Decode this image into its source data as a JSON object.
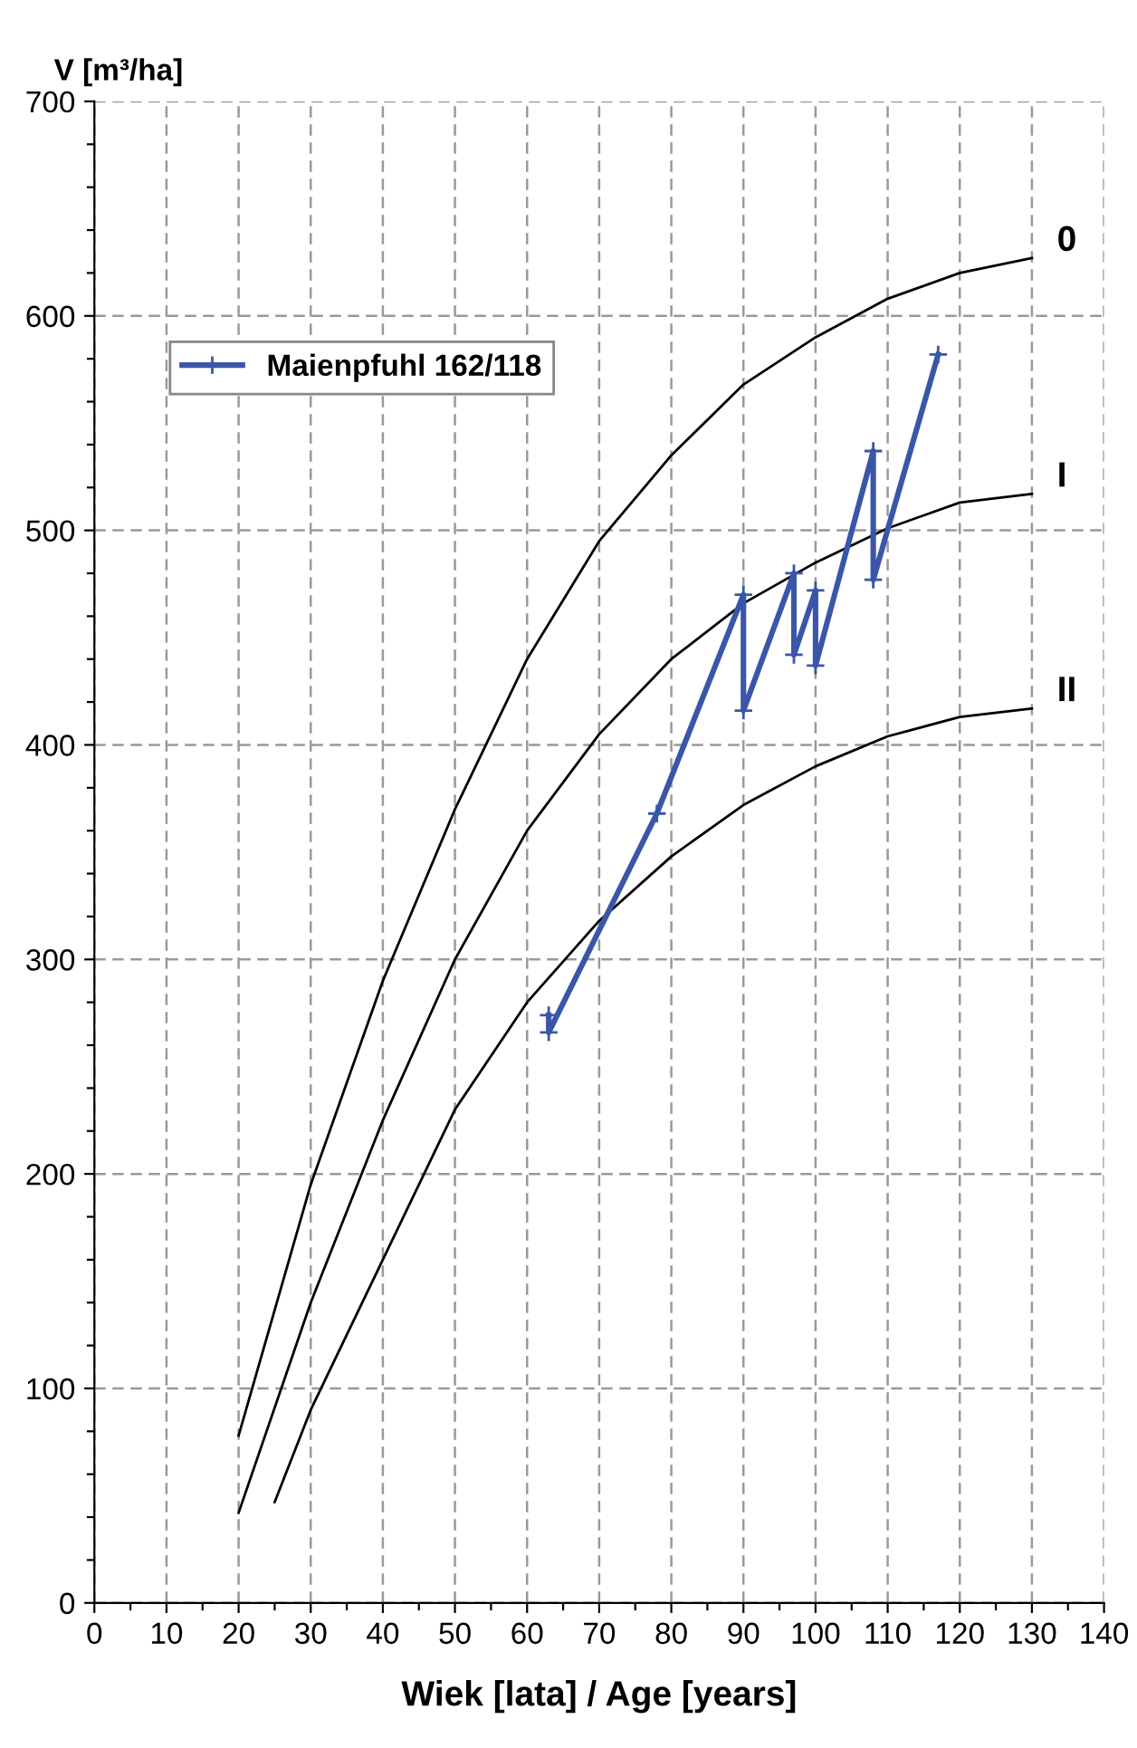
{
  "chart_data": {
    "type": "line",
    "ylabel": "V [m³/ha]",
    "xlabel": "Wiek [lata] / Age [years]",
    "xlim": [
      0,
      140
    ],
    "ylim": [
      0,
      700
    ],
    "xticks": [
      0,
      {
        "value": 5,
        "label": null
      },
      10,
      {
        "value": 15,
        "label": null
      },
      20,
      {
        "value": 25,
        "label": null
      },
      30,
      {
        "value": 35,
        "label": null
      },
      40,
      {
        "value": 45,
        "label": null
      },
      50,
      {
        "value": 55,
        "label": null
      },
      60,
      {
        "value": 65,
        "label": null
      },
      70,
      {
        "value": 75,
        "label": null
      },
      80,
      {
        "value": 85,
        "label": null
      },
      90,
      {
        "value": 95,
        "label": null
      },
      100,
      {
        "value": 105,
        "label": null
      },
      110,
      {
        "value": 115,
        "label": null
      },
      120,
      {
        "value": 125,
        "label": null
      },
      130,
      {
        "value": 135,
        "label": null
      },
      140
    ],
    "yticks": [
      0,
      {
        "value": 20,
        "label": null
      },
      {
        "value": 40,
        "label": null
      },
      {
        "value": 60,
        "label": null
      },
      {
        "value": 80,
        "label": null
      },
      100,
      {
        "value": 120,
        "label": null
      },
      {
        "value": 140,
        "label": null
      },
      {
        "value": 160,
        "label": null
      },
      {
        "value": 180,
        "label": null
      },
      200,
      {
        "value": 220,
        "label": null
      },
      {
        "value": 240,
        "label": null
      },
      {
        "value": 260,
        "label": null
      },
      {
        "value": 280,
        "label": null
      },
      300,
      {
        "value": 320,
        "label": null
      },
      {
        "value": 340,
        "label": null
      },
      {
        "value": 360,
        "label": null
      },
      {
        "value": 380,
        "label": null
      },
      400,
      {
        "value": 420,
        "label": null
      },
      {
        "value": 440,
        "label": null
      },
      {
        "value": 460,
        "label": null
      },
      {
        "value": 480,
        "label": null
      },
      500,
      {
        "value": 520,
        "label": null
      },
      {
        "value": 540,
        "label": null
      },
      {
        "value": 560,
        "label": null
      },
      {
        "value": 580,
        "label": null
      },
      600,
      {
        "value": 620,
        "label": null
      },
      {
        "value": 640,
        "label": null
      },
      {
        "value": 660,
        "label": null
      },
      {
        "value": 680,
        "label": null
      },
      700
    ],
    "grid": true,
    "legend": "top left",
    "series": [
      {
        "name": "0",
        "color": "#000000",
        "marker": "none",
        "x": [
          20,
          30,
          40,
          50,
          60,
          70,
          80,
          90,
          100,
          110,
          120,
          130
        ],
        "values": [
          78,
          195,
          290,
          370,
          440,
          495,
          535,
          568,
          590,
          608,
          620,
          627
        ]
      },
      {
        "name": "I",
        "color": "#000000",
        "marker": "none",
        "x": [
          20,
          30,
          40,
          50,
          60,
          70,
          80,
          90,
          100,
          110,
          120,
          130
        ],
        "values": [
          42,
          140,
          225,
          300,
          360,
          405,
          440,
          466,
          485,
          501,
          513,
          517
        ]
      },
      {
        "name": "II",
        "color": "#000000",
        "marker": "none",
        "x": [
          25,
          30,
          40,
          50,
          60,
          70,
          80,
          90,
          100,
          110,
          120,
          130
        ],
        "values": [
          47,
          90,
          160,
          230,
          280,
          318,
          348,
          372,
          390,
          404,
          413,
          417
        ]
      },
      {
        "name": "Maienpfuhl 162/118",
        "color": "#3a56a8",
        "marker": "cross",
        "x": [
          63,
          63,
          78,
          90,
          90,
          97,
          97,
          100,
          100,
          108,
          108,
          117
        ],
        "values": [
          274,
          266,
          368,
          470,
          416,
          480,
          442,
          472,
          437,
          537,
          477,
          582
        ]
      }
    ]
  }
}
